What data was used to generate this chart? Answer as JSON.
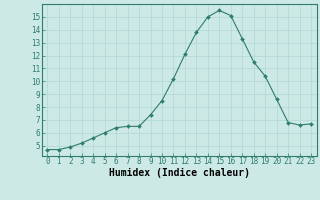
{
  "x": [
    0,
    1,
    2,
    3,
    4,
    5,
    6,
    7,
    8,
    9,
    10,
    11,
    12,
    13,
    14,
    15,
    16,
    17,
    18,
    19,
    20,
    21,
    22,
    23
  ],
  "y": [
    4.7,
    4.7,
    4.9,
    5.2,
    5.6,
    6.0,
    6.4,
    6.5,
    6.5,
    7.4,
    8.5,
    10.2,
    12.1,
    13.8,
    15.0,
    15.5,
    15.1,
    13.3,
    11.5,
    10.4,
    8.6,
    6.8,
    6.6,
    6.7
  ],
  "line_color": "#2e7d6e",
  "marker_color": "#2e7d6e",
  "bg_color": "#cce9e5",
  "grid_color": "#b0d8d4",
  "xlabel": "Humidex (Indice chaleur)",
  "xlim": [
    -0.5,
    23.5
  ],
  "ylim": [
    4.2,
    16.0
  ],
  "yticks": [
    5,
    6,
    7,
    8,
    9,
    10,
    11,
    12,
    13,
    14,
    15
  ],
  "xticks": [
    0,
    1,
    2,
    3,
    4,
    5,
    6,
    7,
    8,
    9,
    10,
    11,
    12,
    13,
    14,
    15,
    16,
    17,
    18,
    19,
    20,
    21,
    22,
    23
  ],
  "axis_fontsize": 6.5,
  "tick_fontsize": 5.5,
  "xlabel_fontsize": 7.0
}
